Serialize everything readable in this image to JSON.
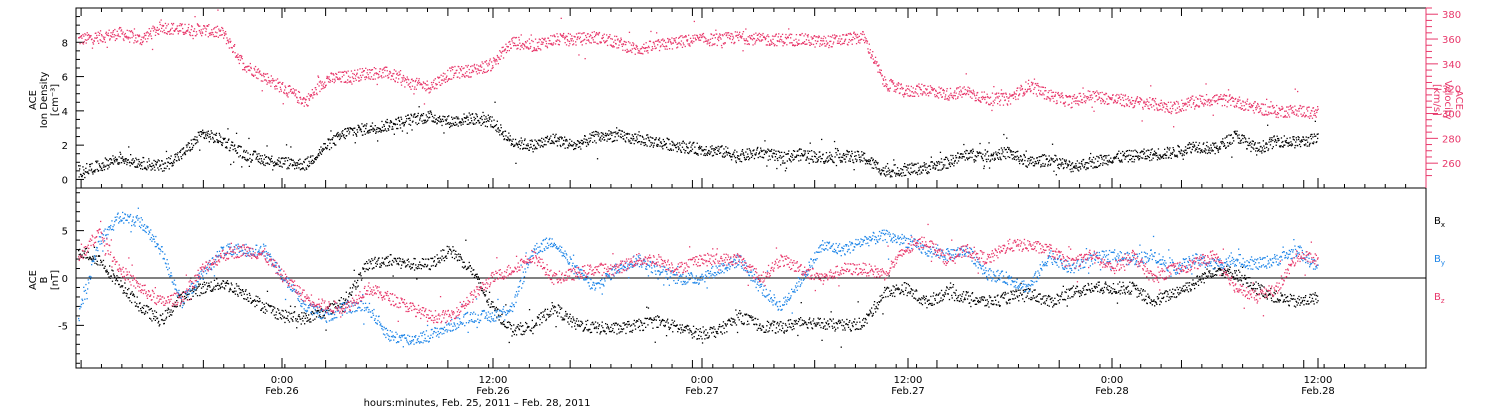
{
  "chart_data": [
    {
      "type": "scatter",
      "panel": "top",
      "ylabel_left": [
        "ACE",
        "Ion Density",
        "[cm⁻³]"
      ],
      "ylabel_right": [
        "ACE",
        "Velocity",
        "[km/s]"
      ],
      "ylim_left": [
        -0.5,
        10
      ],
      "yticks_left": [
        0,
        2,
        4,
        6,
        8
      ],
      "ylim_right": [
        240,
        385
      ],
      "yticks_right": [
        260,
        280,
        300,
        320,
        340,
        360,
        380
      ],
      "series": [
        {
          "axis": "left",
          "color": "#000000",
          "x": [
            0,
            2,
            4,
            6,
            8,
            10,
            12,
            14,
            16,
            18,
            20,
            22,
            24,
            26,
            28,
            30,
            32,
            34,
            36,
            38,
            40,
            42,
            44,
            46,
            48,
            50,
            52,
            54,
            56,
            58,
            60,
            62,
            64,
            66,
            68,
            70,
            72,
            74,
            76,
            78,
            80,
            82,
            84,
            86,
            88,
            90,
            92,
            94,
            96,
            98,
            100,
            102,
            104,
            106,
            108,
            110,
            112,
            114,
            116,
            118,
            120
          ],
          "y": [
            0.5,
            0.8,
            1.3,
            1.0,
            0.8,
            1.5,
            2.7,
            2.3,
            1.5,
            1.2,
            1.0,
            0.9,
            2.0,
            2.8,
            3.0,
            3.2,
            3.5,
            3.7,
            3.4,
            3.6,
            3.4,
            2.2,
            2.0,
            2.4,
            2.0,
            2.5,
            2.6,
            2.4,
            2.2,
            2.0,
            1.8,
            1.7,
            1.4,
            1.6,
            1.3,
            1.5,
            1.3,
            1.4,
            1.3,
            0.5,
            0.6,
            0.7,
            1.0,
            1.5,
            1.4,
            1.6,
            1.0,
            1.2,
            0.8,
            1.0,
            1.3,
            1.4,
            1.5,
            1.6,
            2.0,
            1.8,
            2.6,
            1.8,
            2.3,
            2.2,
            2.4
          ]
        },
        {
          "axis": "right",
          "color": "#e8386b",
          "x": [
            0,
            2,
            4,
            6,
            8,
            10,
            12,
            14,
            16,
            18,
            20,
            22,
            24,
            26,
            28,
            30,
            32,
            34,
            36,
            38,
            40,
            42,
            44,
            46,
            48,
            50,
            52,
            54,
            56,
            58,
            60,
            62,
            64,
            66,
            68,
            70,
            72,
            74,
            76,
            78,
            80,
            82,
            84,
            86,
            88,
            90,
            92,
            94,
            96,
            98,
            100,
            102,
            104,
            106,
            108,
            110,
            112,
            114,
            116,
            118,
            120
          ],
          "y": [
            360,
            362,
            365,
            360,
            370,
            368,
            368,
            365,
            340,
            330,
            320,
            310,
            328,
            330,
            333,
            333,
            325,
            322,
            333,
            335,
            340,
            358,
            355,
            360,
            360,
            362,
            358,
            352,
            355,
            358,
            360,
            360,
            362,
            360,
            360,
            360,
            358,
            360,
            362,
            325,
            318,
            320,
            316,
            318,
            312,
            312,
            323,
            315,
            310,
            315,
            312,
            310,
            308,
            305,
            310,
            312,
            310,
            305,
            302,
            303,
            300
          ]
        }
      ]
    },
    {
      "type": "scatter",
      "panel": "bottom",
      "ylabel_left": [
        "ACE",
        "B",
        "[nT]"
      ],
      "ylim": [
        -9.5,
        9.5
      ],
      "yticks": [
        -5,
        0,
        5
      ],
      "zero_line": true,
      "legend": [
        {
          "name": "B",
          "sub": "x",
          "color": "#000000"
        },
        {
          "name": "B",
          "sub": "y",
          "color": "#1f86e8"
        },
        {
          "name": "B",
          "sub": "z",
          "color": "#e8386b"
        }
      ],
      "series": [
        {
          "name": "Bx",
          "color": "#000000",
          "x": [
            0,
            2,
            4,
            6,
            8,
            10,
            12,
            14,
            16,
            18,
            20,
            22,
            24,
            26,
            28,
            30,
            32,
            34,
            36,
            38,
            40,
            42,
            44,
            46,
            48,
            50,
            52,
            54,
            56,
            58,
            60,
            62,
            64,
            66,
            68,
            70,
            72,
            74,
            76,
            78,
            80,
            82,
            84,
            86,
            88,
            90,
            92,
            94,
            96,
            98,
            100,
            102,
            104,
            106,
            108,
            110,
            112,
            114,
            116,
            118,
            120
          ],
          "y": [
            3,
            2,
            -0.5,
            -3,
            -4.5,
            -2,
            -1,
            -0.5,
            -1.5,
            -3,
            -4,
            -4.2,
            -3.5,
            -2,
            1.5,
            2,
            1.5,
            1.5,
            3,
            1,
            -3,
            -5.5,
            -5,
            -3,
            -4.8,
            -5.2,
            -5.3,
            -5,
            -4.5,
            -5.2,
            -5.8,
            -5.5,
            -4,
            -5,
            -5.2,
            -4.5,
            -4.8,
            -5,
            -4.7,
            -1.5,
            -1,
            -2.5,
            -1.5,
            -2,
            -2.5,
            -2,
            -1.5,
            -2.5,
            -1.5,
            -1,
            -1,
            -1,
            -2.5,
            -1.5,
            -0.5,
            1,
            0.5,
            -1,
            -2,
            -2.5,
            -2
          ]
        },
        {
          "name": "By",
          "color": "#1f86e8",
          "x": [
            0,
            2,
            4,
            6,
            8,
            10,
            12,
            14,
            16,
            18,
            20,
            22,
            24,
            26,
            28,
            30,
            32,
            34,
            36,
            38,
            40,
            42,
            44,
            46,
            48,
            50,
            52,
            54,
            56,
            58,
            60,
            62,
            64,
            66,
            68,
            70,
            72,
            74,
            76,
            78,
            80,
            82,
            84,
            86,
            88,
            90,
            92,
            94,
            96,
            98,
            100,
            102,
            104,
            106,
            108,
            110,
            112,
            114,
            116,
            118,
            120
          ],
          "y": [
            -4,
            4,
            6.5,
            6,
            3,
            -2.5,
            0.5,
            3,
            3,
            3,
            0,
            -3,
            -4,
            -3,
            -3,
            -6,
            -6.5,
            -6,
            -5,
            -4,
            -4,
            -3,
            3,
            4,
            1,
            -1,
            1,
            2,
            1,
            0,
            0,
            1,
            2,
            -1,
            -3,
            0,
            3.5,
            3,
            4,
            4.5,
            4,
            3,
            2.5,
            3,
            0.5,
            0,
            -1,
            2.5,
            1,
            2,
            2.5,
            2,
            2.5,
            1,
            2,
            1.5,
            2,
            1.5,
            2,
            3,
            1
          ]
        },
        {
          "name": "Bz",
          "color": "#e8386b",
          "x": [
            0,
            2,
            4,
            6,
            8,
            10,
            12,
            14,
            16,
            18,
            20,
            22,
            24,
            26,
            28,
            30,
            32,
            34,
            36,
            38,
            40,
            42,
            44,
            46,
            48,
            50,
            52,
            54,
            56,
            58,
            60,
            62,
            64,
            66,
            68,
            70,
            72,
            74,
            76,
            78,
            80,
            82,
            84,
            86,
            88,
            90,
            92,
            94,
            96,
            98,
            100,
            102,
            104,
            106,
            108,
            110,
            112,
            114,
            116,
            118,
            120
          ],
          "y": [
            2,
            5,
            1,
            -1,
            -2.5,
            -2,
            1,
            2.5,
            3,
            2.5,
            0,
            -2,
            -3,
            -3,
            -1,
            -2,
            -3,
            -4,
            -4,
            -2,
            0,
            1,
            2.5,
            0,
            0.5,
            1,
            1,
            2,
            2,
            1,
            2,
            2,
            2,
            0,
            2,
            1,
            0,
            1,
            1,
            0.5,
            3,
            4,
            2,
            3,
            2,
            3.5,
            3.5,
            3,
            1.5,
            2.5,
            1,
            2.5,
            0,
            1,
            1.5,
            2.5,
            -1,
            -2,
            -1,
            2.5,
            2
          ]
        }
      ]
    }
  ],
  "x_axis": {
    "xlim": [
      -0.5,
      132
    ],
    "ticks": [
      {
        "hour": 12,
        "time": "0:00",
        "date": "Feb.26"
      },
      {
        "hour": 48,
        "time": "12:00",
        "date": "Feb.26"
      },
      {
        "hour": 84,
        "time": "0:00",
        "date": "Feb.27"
      },
      {
        "hour": 120,
        "time": "12:00",
        "date": "Feb.27"
      },
      {
        "hour": 156,
        "time": "0:00",
        "date": "Feb.28"
      },
      {
        "hour": 192,
        "time": "12:00",
        "date": "Feb.28"
      }
    ],
    "xlabel": "hours:minutes, Feb. 25, 2011 – Feb. 28, 2011"
  }
}
